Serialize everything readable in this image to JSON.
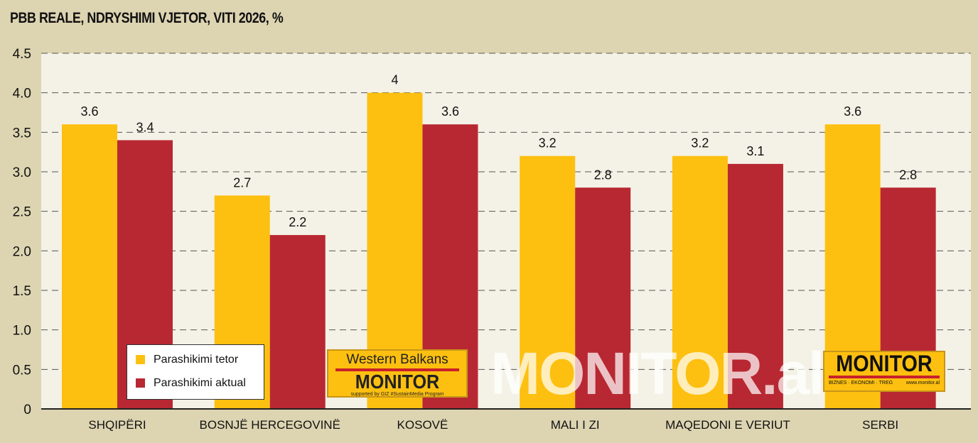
{
  "chart_data": {
    "type": "bar",
    "title": "PBB REALE, NDRYSHIMI VJETOR, VITI 2026, %",
    "categories": [
      "SHQIPËRI",
      "BOSNJË HERCEGOVINË",
      "KOSOVË",
      "MALI I ZI",
      "MAQEDONI E VERIUT",
      "SERBI"
    ],
    "series": [
      {
        "name": "Parashikimi tetor",
        "color": "#fdc010",
        "values": [
          3.6,
          2.7,
          4,
          3.2,
          3.2,
          3.6
        ],
        "labels": [
          "3.6",
          "2.7",
          "4",
          "3.2",
          "3.2",
          "3.6"
        ]
      },
      {
        "name": "Parashikimi aktual",
        "color": "#b82832",
        "values": [
          3.4,
          2.2,
          3.6,
          2.8,
          3.1,
          2.8
        ],
        "labels": [
          "3.4",
          "2.2",
          "3.6",
          "2.8",
          "3.1",
          "2.8"
        ]
      }
    ],
    "ylim": [
      0,
      4.5
    ],
    "yticks": [
      "0",
      "0.5",
      "1.0",
      "1.5",
      "2.0",
      "2.5",
      "3.0",
      "3.5",
      "4.0",
      "4.5"
    ],
    "grid": true,
    "legend": "bottom-left"
  },
  "logos": {
    "wb_top": "Western Balkans",
    "wb_main": "MONITOR",
    "wb_sub": "supported by GIZ #SustainMedia Program",
    "watermark": "MONITOR.al",
    "mon_main": "MONITOR",
    "mon_sub": "BIZNES · EKONOMI · TREG",
    "mon_url": "www.monitor.al"
  }
}
